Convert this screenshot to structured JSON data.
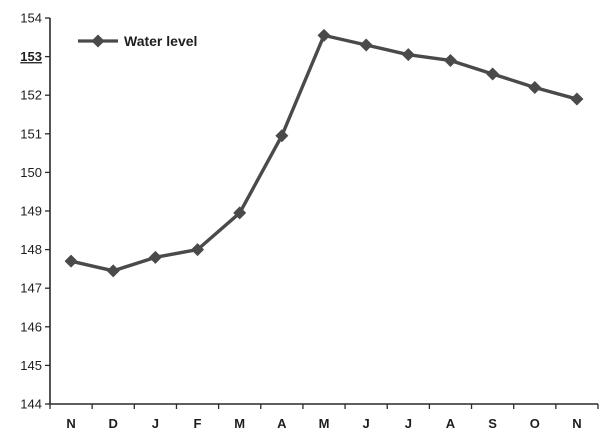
{
  "chart_data": {
    "type": "line",
    "title": "",
    "xlabel": "",
    "ylabel": "",
    "categories": [
      "N",
      "D",
      "J",
      "F",
      "M",
      "A",
      "M",
      "J",
      "J",
      "A",
      "S",
      "O",
      "N"
    ],
    "series": [
      {
        "name": "Water level",
        "color": "#4a4a4a",
        "marker": "diamond",
        "values": [
          147.7,
          147.45,
          147.8,
          148.0,
          148.95,
          150.95,
          153.55,
          153.3,
          153.05,
          152.9,
          152.55,
          152.2,
          151.9
        ]
      }
    ],
    "ylim": [
      144,
      154
    ],
    "yticks": [
      {
        "value": 144,
        "label": "144"
      },
      {
        "value": 145,
        "label": "145"
      },
      {
        "value": 146,
        "label": "146"
      },
      {
        "value": 147,
        "label": "147"
      },
      {
        "value": 148,
        "label": "148"
      },
      {
        "value": 149,
        "label": "149"
      },
      {
        "value": 150,
        "label": "150"
      },
      {
        "value": 151,
        "label": "151"
      },
      {
        "value": 152,
        "label": "152"
      },
      {
        "value": 153,
        "label": "153",
        "emphasis": true
      },
      {
        "value": 154,
        "label": "154"
      }
    ],
    "grid": false,
    "legend": {
      "position": "top-left"
    }
  }
}
